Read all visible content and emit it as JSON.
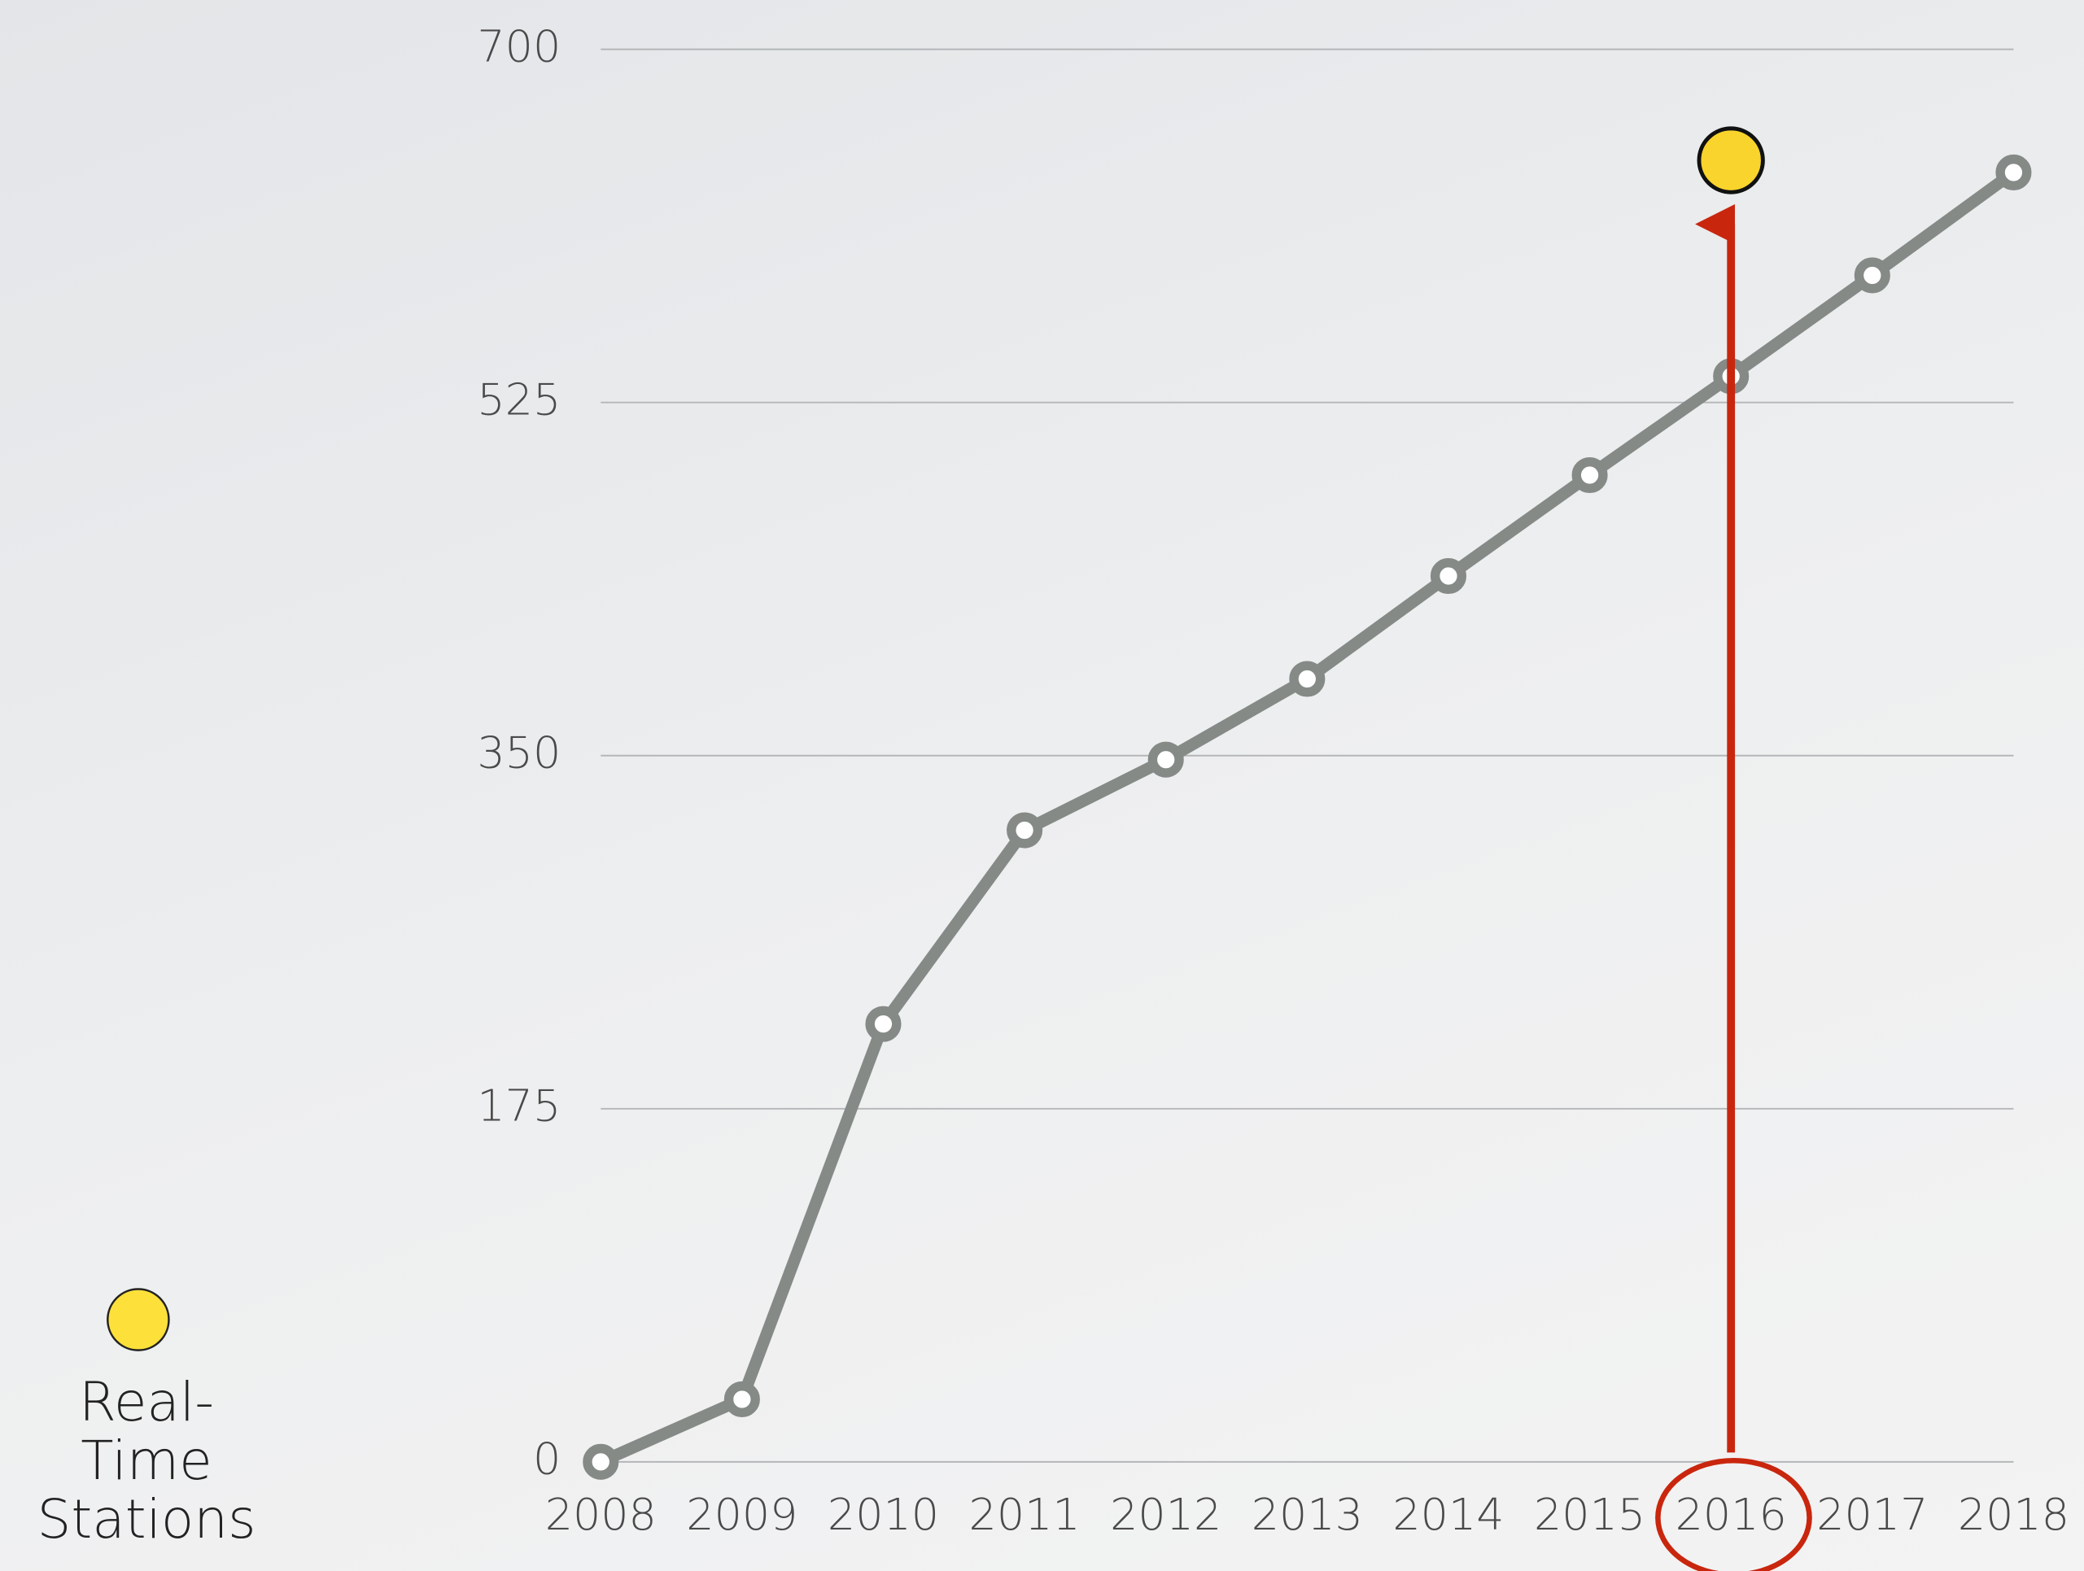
{
  "chart_data": {
    "type": "line",
    "categories": [
      "2008",
      "2009",
      "2010",
      "2011",
      "2012",
      "2013",
      "2014",
      "2015",
      "2016",
      "2017",
      "2018"
    ],
    "series": [
      {
        "color": "#858a87",
        "values": [
          0,
          31,
          217,
          313,
          348,
          388,
          439,
          489,
          538,
          588,
          639
        ]
      },
      {
        "name": "Real-Time Stations",
        "color": "#f8d42c",
        "values": [
          null,
          null,
          null,
          null,
          null,
          null,
          null,
          null,
          645,
          null,
          null
        ]
      }
    ],
    "ylim": [
      0,
      700
    ],
    "yticks": [
      0,
      175,
      350,
      525,
      700
    ],
    "grid": true,
    "highlight_category": 8
  }
}
